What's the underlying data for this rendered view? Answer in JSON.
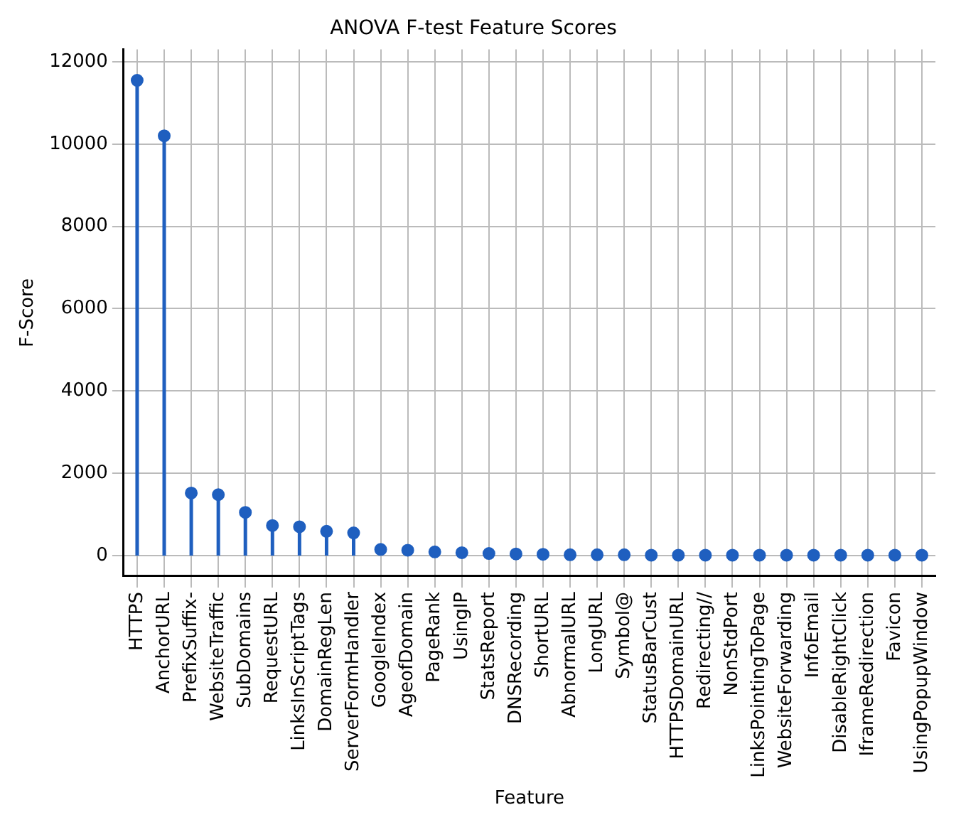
{
  "chart_data": {
    "type": "lollipop",
    "title": "ANOVA F-test Feature Scores",
    "xlabel": "Feature",
    "ylabel": "F-Score",
    "categories": [
      "HTTPS",
      "AnchorURL",
      "PrefixSuffix-",
      "WebsiteTraffic",
      "SubDomains",
      "RequestURL",
      "LinksInScriptTags",
      "DomainRegLen",
      "ServerFormHandler",
      "GoogleIndex",
      "AgeofDomain",
      "PageRank",
      "UsingIP",
      "StatsReport",
      "DNSRecording",
      "ShortURL",
      "AbnormalURL",
      "LongURL",
      "Symbol@",
      "StatusBarCust",
      "HTTPSDomainURL",
      "Redirecting//",
      "NonStdPort",
      "LinksPointingToPage",
      "WebsiteForwarding",
      "InfoEmail",
      "DisableRightClick",
      "IframeRedirection",
      "Favicon",
      "UsingPopupWindow"
    ],
    "values": [
      11550,
      10200,
      1520,
      1480,
      1050,
      730,
      700,
      590,
      550,
      150,
      130,
      90,
      70,
      50,
      40,
      30,
      20,
      20,
      20,
      10,
      10,
      10,
      10,
      10,
      10,
      10,
      10,
      10,
      10,
      10
    ],
    "color": "#1f5fbf",
    "ylim": [
      -500,
      12300
    ],
    "yticks": [
      0,
      2000,
      4000,
      6000,
      8000,
      10000,
      12000
    ],
    "grid": true,
    "marker": "circle",
    "legend": false
  }
}
